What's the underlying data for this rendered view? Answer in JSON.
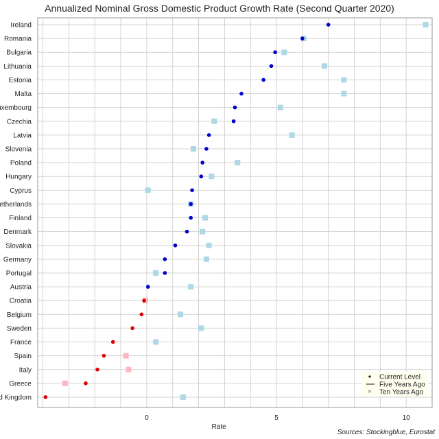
{
  "chart_data": {
    "type": "scatter",
    "title": "Annualized Nominal Gross Domestic Product Growth Rate (Second Quarter 2020)",
    "xlabel": "Rate",
    "xlim": [
      -4.2,
      11.0
    ],
    "xticks": [
      0,
      5,
      10
    ],
    "grid": true,
    "legend_position": "bottom-right",
    "sources": "Sources: Stockingblue, Eurostat",
    "colors": {
      "positive": "#0000cc",
      "negative": "#dd0000",
      "ten_positive": "#add8e6",
      "ten_negative": "#ffb6c1",
      "grid": "#d3d3d3",
      "legend_bg": "#fffff0"
    },
    "categories": [
      "Ireland",
      "Romania",
      "Bulgaria",
      "Lithuania",
      "Estonia",
      "Malta",
      "Luxembourg",
      "Czechia",
      "Latvia",
      "Slovenia",
      "Poland",
      "Hungary",
      "Cyprus",
      "Netherlands",
      "Finland",
      "Denmark",
      "Slovakia",
      "Germany",
      "Portugal",
      "Austria",
      "Croatia",
      "Belgium",
      "Sweden",
      "France",
      "Spain",
      "Italy",
      "Greece",
      "United Kingdom"
    ],
    "series": [
      {
        "name": "Current Level",
        "marker": "dot",
        "values": [
          7.0,
          6.0,
          4.95,
          4.8,
          4.5,
          3.65,
          3.4,
          3.35,
          2.4,
          2.3,
          2.15,
          2.1,
          1.75,
          1.7,
          1.7,
          1.55,
          1.1,
          0.7,
          0.7,
          0.05,
          -0.1,
          -0.2,
          -0.55,
          -1.3,
          -1.65,
          -1.9,
          -2.35,
          -3.9
        ]
      },
      {
        "name": "Five Years Ago",
        "marker": "line",
        "values": []
      },
      {
        "name": "Ten Years Ago",
        "marker": "square",
        "values": [
          10.75,
          6.05,
          5.3,
          6.85,
          7.6,
          7.6,
          5.15,
          2.6,
          5.6,
          1.8,
          3.5,
          2.5,
          0.05,
          1.7,
          2.25,
          2.15,
          2.4,
          2.3,
          0.35,
          1.7,
          -0.05,
          1.3,
          2.1,
          0.35,
          -0.8,
          -0.7,
          -3.15,
          1.4
        ]
      }
    ]
  }
}
